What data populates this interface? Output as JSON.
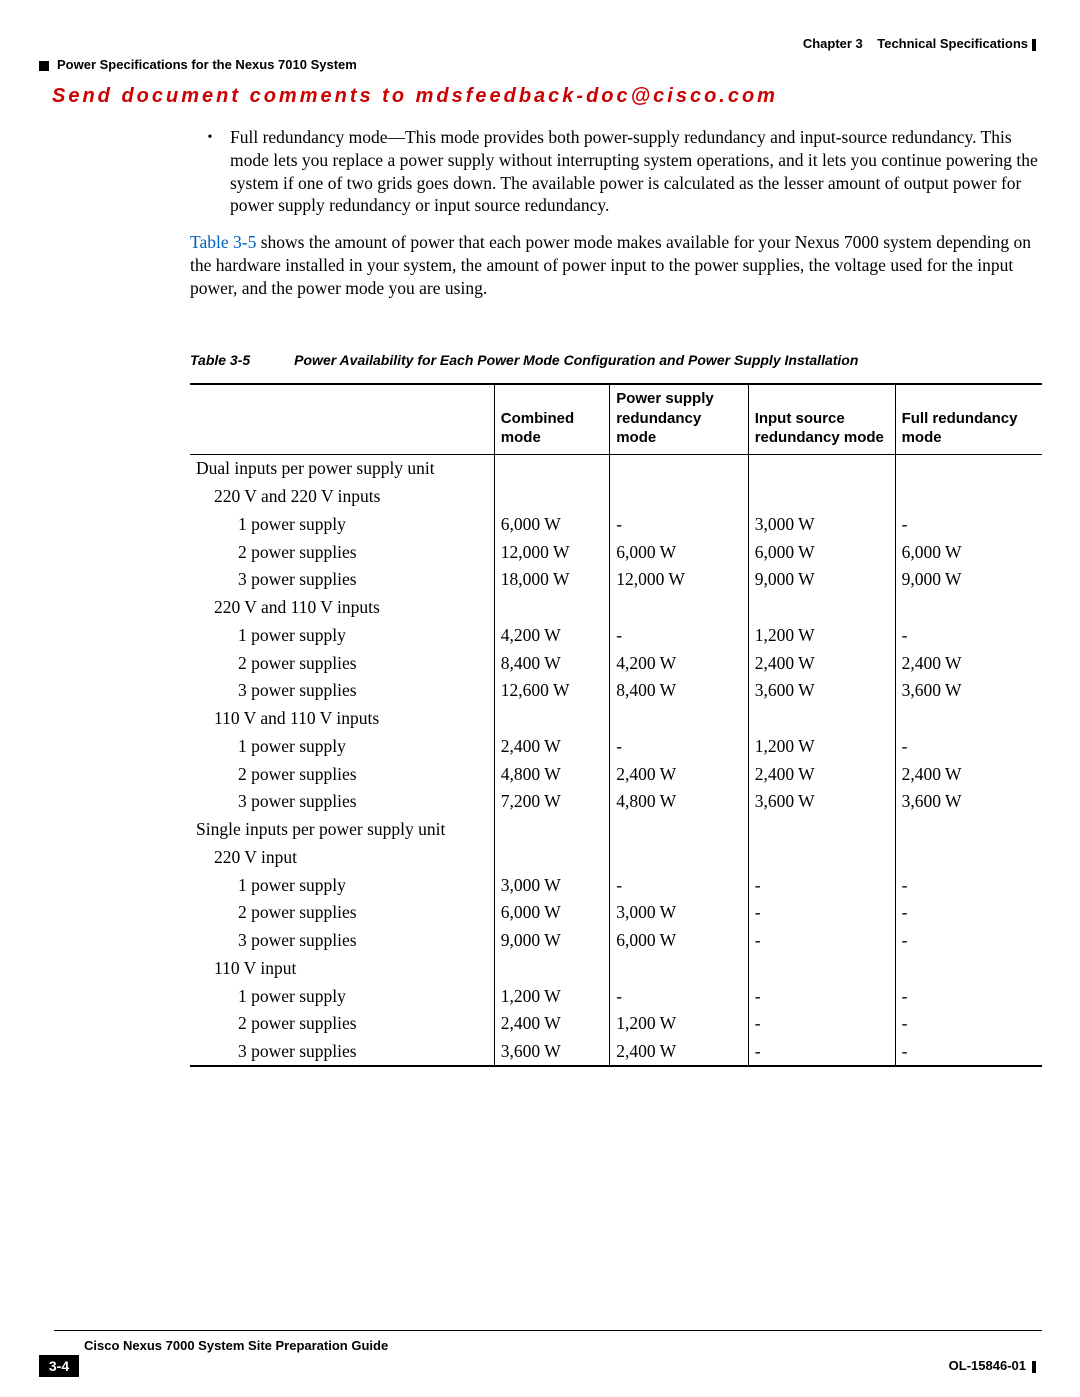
{
  "header": {
    "chapter": "Chapter 3",
    "chapter_title": "Technical Specifications",
    "section": "Power Specifications for the Nexus 7010 System"
  },
  "feedback_banner": "Send document comments to mdsfeedback-doc@cisco.com",
  "bullet": {
    "lead": "Full redundancy mode—",
    "rest": "This mode provides both power-supply redundancy and input-source redundancy. This mode lets you replace a power supply without interrupting system operations, and it lets you continue powering the system if one of two grids goes down. The available power is calculated as the lesser amount of output power for power supply redundancy or input source redundancy."
  },
  "para2": {
    "link": "Table 3-5",
    "rest": " shows the amount of power that each power mode makes available for your Nexus 7000 system depending on the hardware installed in your system, the amount of power input to the power supplies, the voltage used for the input power, and the power mode you are using."
  },
  "table": {
    "label": "Table 3-5",
    "desc": "Power Availability for Each Power Mode Configuration and Power Supply Installation",
    "headers": {
      "c1": "",
      "c2": "Combined mode",
      "c3": "Power supply redundancy mode",
      "c4": "Input source redundancy mode",
      "c5": "Full redundancy mode"
    },
    "rows": [
      {
        "indent": 0,
        "label": "Dual inputs per power supply unit",
        "c": [
          "",
          "",
          "",
          ""
        ]
      },
      {
        "indent": 1,
        "label": "220 V and 220 V inputs",
        "c": [
          "",
          "",
          "",
          ""
        ]
      },
      {
        "indent": 2,
        "label": "1 power supply",
        "c": [
          "6,000 W",
          "-",
          "3,000 W",
          "-"
        ]
      },
      {
        "indent": 2,
        "label": "2 power supplies",
        "c": [
          "12,000 W",
          "6,000 W",
          "6,000 W",
          "6,000 W"
        ]
      },
      {
        "indent": 2,
        "label": "3 power supplies",
        "c": [
          "18,000 W",
          "12,000 W",
          "9,000 W",
          "9,000 W"
        ]
      },
      {
        "indent": 1,
        "label": "220 V and 110 V inputs",
        "c": [
          "",
          "",
          "",
          ""
        ]
      },
      {
        "indent": 2,
        "label": "1 power supply",
        "c": [
          "4,200 W",
          "-",
          "1,200 W",
          "-"
        ]
      },
      {
        "indent": 2,
        "label": "2 power supplies",
        "c": [
          "8,400 W",
          "4,200 W",
          "2,400 W",
          "2,400 W"
        ]
      },
      {
        "indent": 2,
        "label": "3 power supplies",
        "c": [
          "12,600 W",
          "8,400 W",
          "3,600 W",
          "3,600 W"
        ]
      },
      {
        "indent": 1,
        "label": "110 V and 110 V inputs",
        "c": [
          "",
          "",
          "",
          ""
        ]
      },
      {
        "indent": 2,
        "label": "1 power supply",
        "c": [
          "2,400 W",
          "-",
          "1,200 W",
          "-"
        ]
      },
      {
        "indent": 2,
        "label": "2 power supplies",
        "c": [
          "4,800 W",
          "2,400 W",
          "2,400 W",
          "2,400 W"
        ]
      },
      {
        "indent": 2,
        "label": "3 power supplies",
        "c": [
          "7,200 W",
          "4,800 W",
          "3,600 W",
          "3,600 W"
        ]
      },
      {
        "indent": 0,
        "label": "Single inputs per power supply unit",
        "c": [
          "",
          "",
          "",
          ""
        ]
      },
      {
        "indent": 1,
        "label": "220 V input",
        "c": [
          "",
          "",
          "",
          ""
        ]
      },
      {
        "indent": 2,
        "label": "1 power supply",
        "c": [
          "3,000 W",
          "-",
          "-",
          "-"
        ]
      },
      {
        "indent": 2,
        "label": "2 power supplies",
        "c": [
          "6,000 W",
          "3,000 W",
          "-",
          "-"
        ]
      },
      {
        "indent": 2,
        "label": "3 power supplies",
        "c": [
          "9,000 W",
          "6,000 W",
          "-",
          "-"
        ]
      },
      {
        "indent": 1,
        "label": "110 V input",
        "c": [
          "",
          "",
          "",
          ""
        ]
      },
      {
        "indent": 2,
        "label": "1 power supply",
        "c": [
          "1,200 W",
          "-",
          "-",
          "-"
        ]
      },
      {
        "indent": 2,
        "label": "2 power supplies",
        "c": [
          "2,400 W",
          "1,200 W",
          "-",
          "-"
        ]
      },
      {
        "indent": 2,
        "label": "3 power supplies",
        "c": [
          "3,600 W",
          "2,400 W",
          "-",
          "-"
        ]
      }
    ]
  },
  "footer": {
    "guide": "Cisco Nexus 7000 System Site Preparation Guide",
    "page": "3-4",
    "docnum": "OL-15846-01"
  }
}
